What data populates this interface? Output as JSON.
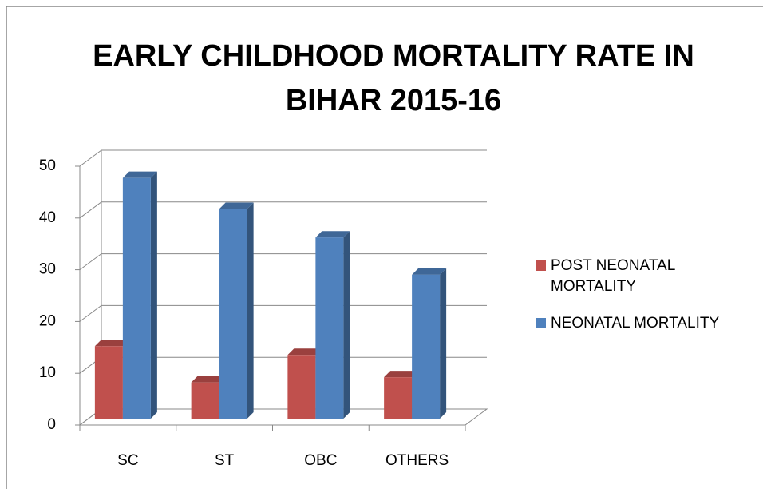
{
  "chart_data": {
    "type": "bar3d",
    "title": "EARLY CHILDHOOD MORTALITY RATE IN BIHAR 2015-16",
    "categories": [
      "SC",
      "ST",
      "OBC",
      "OTHERS"
    ],
    "series": [
      {
        "name": "POST NEONATAL MORTALITY",
        "color": "#c0504d",
        "values": [
          14,
          7,
          12.3,
          8
        ]
      },
      {
        "name": "NEONATAL MORTALITY",
        "color": "#4f81bd",
        "values": [
          46.5,
          40.5,
          35,
          27.8
        ]
      }
    ],
    "ylim": [
      0,
      50
    ],
    "yticks": [
      0,
      10,
      20,
      30,
      40,
      50
    ],
    "grid": true,
    "legend": "right"
  }
}
